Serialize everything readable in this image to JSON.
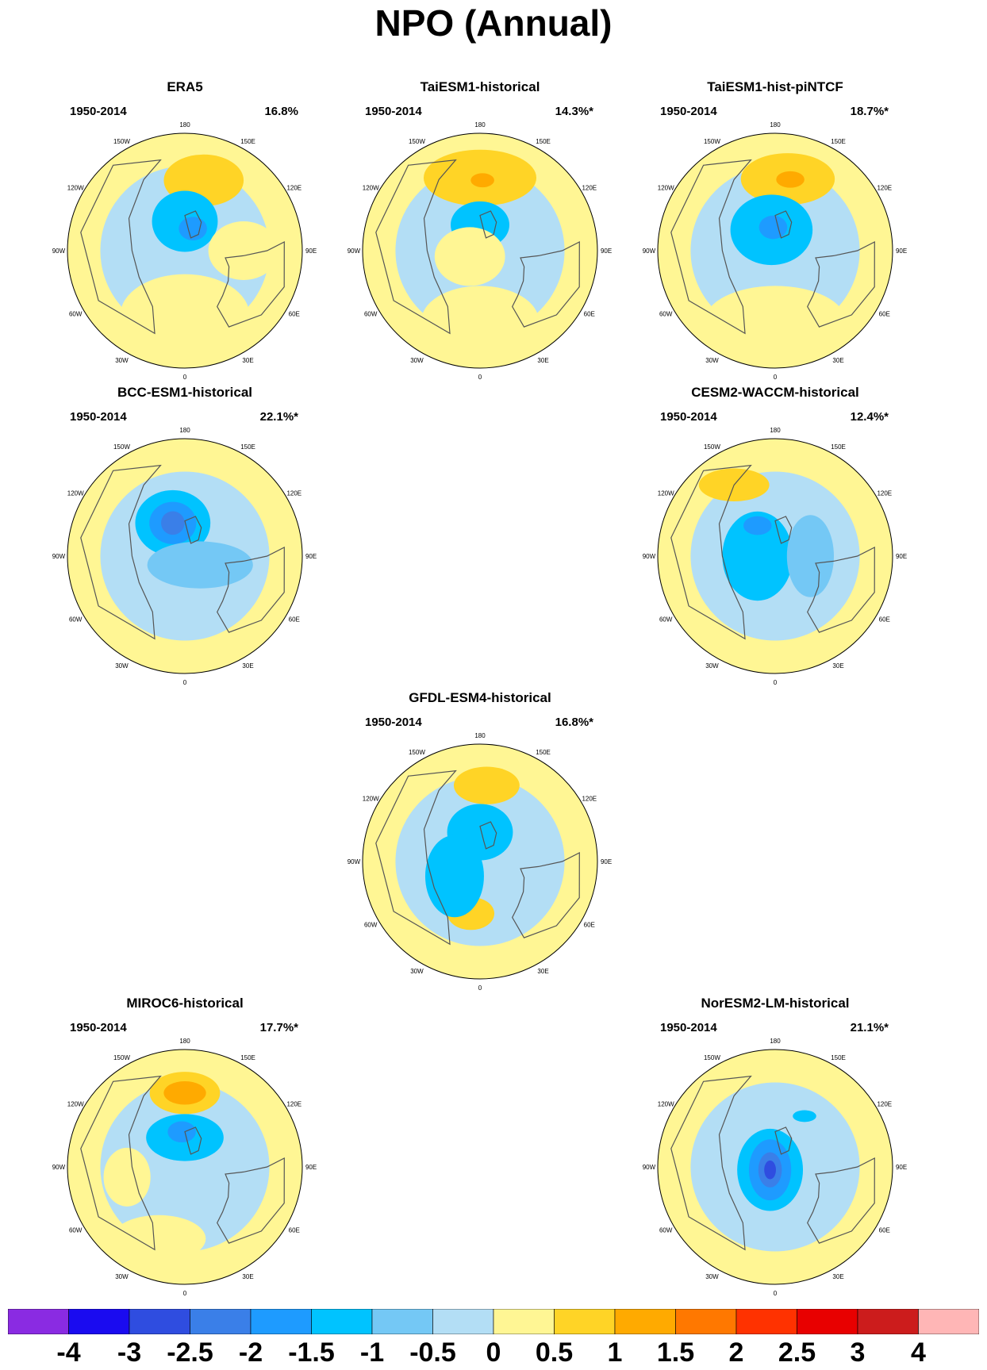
{
  "title": "NPO (Annual)",
  "colors": {
    "bins": [
      "#8a2be2",
      "#1a0bf0",
      "#2f4de0",
      "#3a7fe8",
      "#1e9bff",
      "#00c3ff",
      "#74c8f5",
      "#b3def5",
      "#fff694",
      "#ffd426",
      "#ffaa00",
      "#ff7800",
      "#ff3200",
      "#e80000",
      "#cc1c1c",
      "#ffb6b6"
    ],
    "ocean_lightblue": "#b3def5",
    "coast": "#555555"
  },
  "lon_labels": [
    "180",
    "150E",
    "120E",
    "90E",
    "60E",
    "30E",
    "0",
    "30W",
    "60W",
    "90W",
    "120W",
    "150W"
  ],
  "colorbar": {
    "labels": [
      "-4",
      "-3",
      "-2.5",
      "-2",
      "-1.5",
      "-1",
      "-0.5",
      "0",
      "0.5",
      "1",
      "1.5",
      "2",
      "2.5",
      "3",
      "4"
    ]
  },
  "panels": [
    {
      "id": "era5",
      "title": "ERA5",
      "period": "1950-2014",
      "pct": "16.8%",
      "blobs": [
        {
          "lon": 195,
          "r": 0.62,
          "rx": 0.34,
          "ry": 0.22,
          "v": 1
        },
        {
          "lon": 180,
          "r": 0.25,
          "rx": 0.28,
          "ry": 0.26,
          "v": -1
        },
        {
          "lon": 200,
          "r": 0.2,
          "rx": 0.12,
          "ry": 0.1,
          "v": -1.5
        },
        {
          "lon": 0,
          "r": 0.55,
          "rx": 0.55,
          "ry": 0.35,
          "v": 0.5
        },
        {
          "lon": 270,
          "r": 0.5,
          "rx": 0.3,
          "ry": 0.25,
          "v": 0.5
        }
      ]
    },
    {
      "id": "taiesm1-historical",
      "title": "TaiESM1-historical",
      "period": "1950-2014",
      "pct": "14.3%*",
      "blobs": [
        {
          "lon": 180,
          "r": 0.62,
          "rx": 0.48,
          "ry": 0.24,
          "v": 1
        },
        {
          "lon": 182,
          "r": 0.6,
          "rx": 0.1,
          "ry": 0.06,
          "v": 1.5
        },
        {
          "lon": 180,
          "r": 0.22,
          "rx": 0.25,
          "ry": 0.2,
          "v": -1
        },
        {
          "lon": 60,
          "r": 0.1,
          "rx": 0.3,
          "ry": 0.25,
          "v": 0.5
        },
        {
          "lon": 0,
          "r": 0.6,
          "rx": 0.5,
          "ry": 0.3,
          "v": 0.5
        }
      ]
    },
    {
      "id": "taiesm1-hist-pintcf",
      "title": "TaiESM1-hist-piNTCF",
      "period": "1950-2014",
      "pct": "18.7%*",
      "blobs": [
        {
          "lon": 190,
          "r": 0.62,
          "rx": 0.4,
          "ry": 0.22,
          "v": 1
        },
        {
          "lon": 192,
          "r": 0.62,
          "rx": 0.12,
          "ry": 0.07,
          "v": 1.5
        },
        {
          "lon": 170,
          "r": 0.18,
          "rx": 0.35,
          "ry": 0.3,
          "v": -1
        },
        {
          "lon": 175,
          "r": 0.2,
          "rx": 0.12,
          "ry": 0.1,
          "v": -1.5
        },
        {
          "lon": 0,
          "r": 0.6,
          "rx": 0.6,
          "ry": 0.3,
          "v": 0.5
        }
      ]
    },
    {
      "id": "bcc-esm1-historical",
      "title": "BCC-ESM1-historical",
      "period": "1950-2014",
      "pct": "22.1%*",
      "blobs": [
        {
          "lon": 160,
          "r": 0.3,
          "rx": 0.32,
          "ry": 0.28,
          "v": -1
        },
        {
          "lon": 160,
          "r": 0.3,
          "rx": 0.2,
          "ry": 0.18,
          "v": -1.5
        },
        {
          "lon": 160,
          "r": 0.3,
          "rx": 0.1,
          "ry": 0.1,
          "v": -2
        },
        {
          "lon": 80,
          "r": 0.2,
          "rx": 0.05,
          "ry": 0.06,
          "v": 1
        },
        {
          "lon": 300,
          "r": 0.15,
          "rx": 0.45,
          "ry": 0.2,
          "v": -0.5
        }
      ]
    },
    {
      "id": "cesm2-waccm-historical",
      "title": "CESM2-WACCM-historical",
      "period": "1950-2014",
      "pct": "12.4%*",
      "blobs": [
        {
          "lon": 150,
          "r": 0.7,
          "rx": 0.3,
          "ry": 0.14,
          "v": 1
        },
        {
          "lon": 90,
          "r": 0.15,
          "rx": 0.3,
          "ry": 0.38,
          "v": -1
        },
        {
          "lon": 150,
          "r": 0.3,
          "rx": 0.12,
          "ry": 0.08,
          "v": -1.5
        },
        {
          "lon": 270,
          "r": 0.3,
          "rx": 0.2,
          "ry": 0.35,
          "v": -0.5
        }
      ]
    },
    {
      "id": "gfdl-esm4-historical",
      "title": "GFDL-ESM4-historical",
      "period": "1950-2014",
      "pct": "16.8%*",
      "blobs": [
        {
          "lon": 185,
          "r": 0.65,
          "rx": 0.28,
          "ry": 0.16,
          "v": 1
        },
        {
          "lon": 180,
          "r": 0.25,
          "rx": 0.28,
          "ry": 0.24,
          "v": -1
        },
        {
          "lon": 10,
          "r": 0.45,
          "rx": 0.2,
          "ry": 0.14,
          "v": 1
        },
        {
          "lon": 60,
          "r": 0.25,
          "rx": 0.25,
          "ry": 0.35,
          "v": -1
        }
      ]
    },
    {
      "id": "miroc6-historical",
      "title": "MIROC6-historical",
      "period": "1950-2014",
      "pct": "17.7%*",
      "blobs": [
        {
          "lon": 180,
          "r": 0.63,
          "rx": 0.3,
          "ry": 0.18,
          "v": 1
        },
        {
          "lon": 180,
          "r": 0.63,
          "rx": 0.18,
          "ry": 0.1,
          "v": 1.5
        },
        {
          "lon": 180,
          "r": 0.25,
          "rx": 0.33,
          "ry": 0.2,
          "v": -1
        },
        {
          "lon": 175,
          "r": 0.3,
          "rx": 0.12,
          "ry": 0.09,
          "v": -1.5
        },
        {
          "lon": 20,
          "r": 0.65,
          "rx": 0.4,
          "ry": 0.2,
          "v": 0.5
        },
        {
          "lon": 80,
          "r": 0.5,
          "rx": 0.2,
          "ry": 0.25,
          "v": 0.5
        }
      ]
    },
    {
      "id": "noresm2-lm-historical",
      "title": "NorESM2-LM-historical",
      "period": "1950-2014",
      "pct": "21.1%*",
      "blobs": [
        {
          "lon": 60,
          "r": 0.05,
          "rx": 0.28,
          "ry": 0.35,
          "v": -1
        },
        {
          "lon": 60,
          "r": 0.05,
          "rx": 0.18,
          "ry": 0.26,
          "v": -1.5
        },
        {
          "lon": 60,
          "r": 0.05,
          "rx": 0.1,
          "ry": 0.15,
          "v": -2
        },
        {
          "lon": 60,
          "r": 0.05,
          "rx": 0.05,
          "ry": 0.08,
          "v": -2.5
        },
        {
          "lon": 210,
          "r": 0.5,
          "rx": 0.1,
          "ry": 0.05,
          "v": -1
        }
      ]
    }
  ]
}
